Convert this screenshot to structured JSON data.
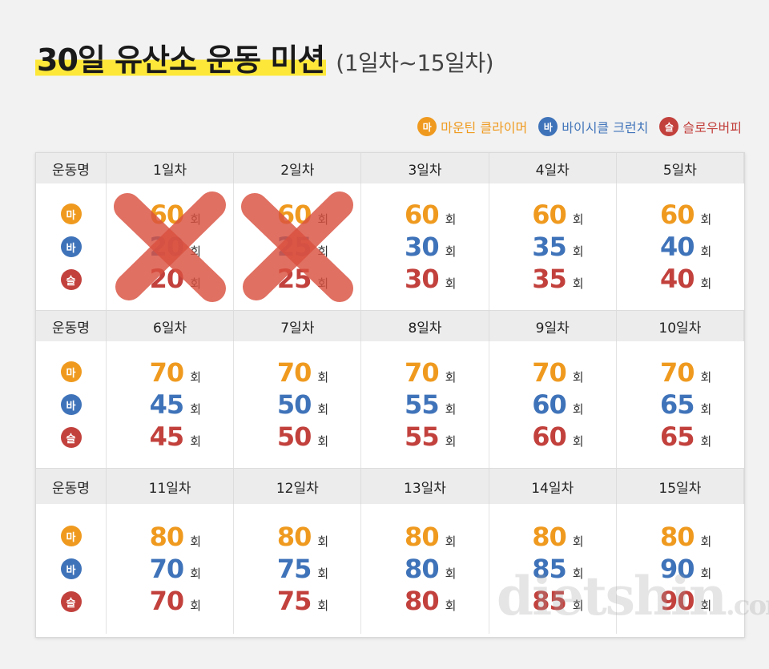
{
  "title": {
    "main": "30일 유산소 운동 미션",
    "sub": "(1일차~15일차)"
  },
  "legend": [
    {
      "badge": "마",
      "label": "마운틴 클라이머",
      "color": "#ef9a1f"
    },
    {
      "badge": "바",
      "label": "바이시클 크런치",
      "color": "#3f73b9"
    },
    {
      "badge": "슬",
      "label": "슬로우버피",
      "color": "#c2413d"
    }
  ],
  "table": {
    "row_header": "운동명",
    "unit": "회",
    "badges": [
      "마",
      "바",
      "슬"
    ],
    "sections": [
      {
        "days": [
          {
            "label": "1일차",
            "values": [
              "60",
              "20",
              "20"
            ],
            "crossed": true
          },
          {
            "label": "2일차",
            "values": [
              "60",
              "25",
              "25"
            ],
            "crossed": true
          },
          {
            "label": "3일차",
            "values": [
              "60",
              "30",
              "30"
            ],
            "crossed": false
          },
          {
            "label": "4일차",
            "values": [
              "60",
              "35",
              "35"
            ],
            "crossed": false
          },
          {
            "label": "5일차",
            "values": [
              "60",
              "40",
              "40"
            ],
            "crossed": false
          }
        ]
      },
      {
        "days": [
          {
            "label": "6일차",
            "values": [
              "70",
              "45",
              "45"
            ],
            "crossed": false
          },
          {
            "label": "7일차",
            "values": [
              "70",
              "50",
              "50"
            ],
            "crossed": false
          },
          {
            "label": "8일차",
            "values": [
              "70",
              "55",
              "55"
            ],
            "crossed": false
          },
          {
            "label": "9일차",
            "values": [
              "70",
              "60",
              "60"
            ],
            "crossed": false
          },
          {
            "label": "10일차",
            "values": [
              "70",
              "65",
              "65"
            ],
            "crossed": false
          }
        ]
      },
      {
        "days": [
          {
            "label": "11일차",
            "values": [
              "80",
              "70",
              "70"
            ],
            "crossed": false
          },
          {
            "label": "12일차",
            "values": [
              "80",
              "75",
              "75"
            ],
            "crossed": false
          },
          {
            "label": "13일차",
            "values": [
              "80",
              "80",
              "80"
            ],
            "crossed": false
          },
          {
            "label": "14일차",
            "values": [
              "80",
              "85",
              "85"
            ],
            "crossed": false
          },
          {
            "label": "15일차",
            "values": [
              "80",
              "90",
              "90"
            ],
            "crossed": false
          }
        ]
      }
    ]
  },
  "watermark": {
    "text": "dietshin",
    "domain": ".com"
  }
}
